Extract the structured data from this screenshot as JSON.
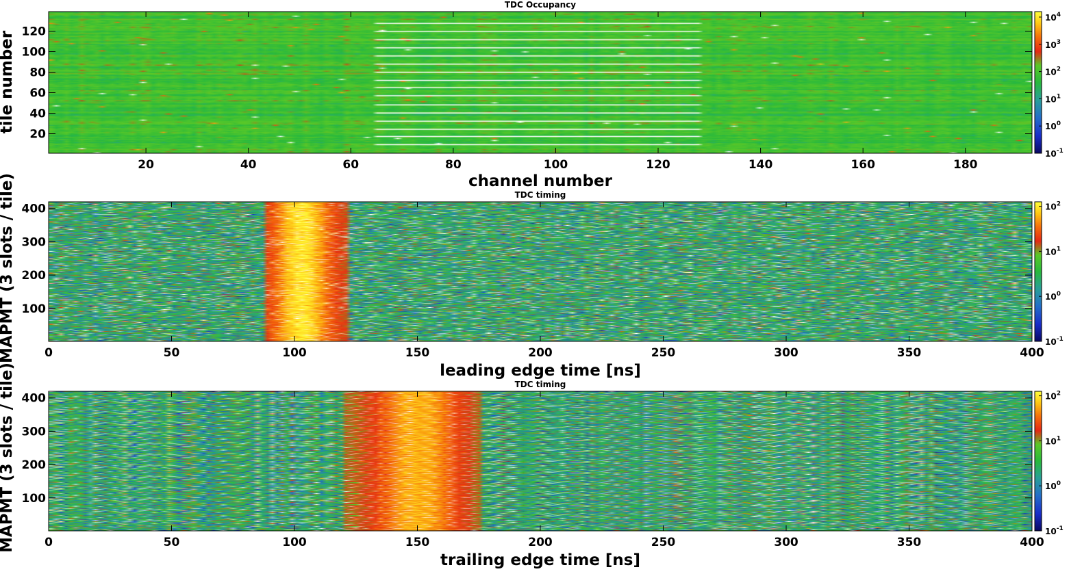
{
  "chart_data": [
    {
      "type": "heatmap",
      "title": "TDC Occupancy",
      "xlabel": "channel number",
      "ylabel": "tile number",
      "xlim": [
        1,
        193
      ],
      "ylim": [
        1,
        139
      ],
      "xticks": [
        20,
        40,
        60,
        80,
        100,
        120,
        140,
        160,
        180
      ],
      "yticks": [
        20,
        40,
        60,
        80,
        100,
        120
      ],
      "z_scale": "log",
      "colorbar_ticks": [
        {
          "base": "10",
          "exp": "4"
        },
        {
          "base": "10",
          "exp": "3"
        },
        {
          "base": "10",
          "exp": "2"
        },
        {
          "base": "10",
          "exp": "1"
        },
        {
          "base": "10",
          "exp": "0"
        },
        {
          "base": "10",
          "exp": "-1"
        }
      ],
      "zlim_exp": [
        -1,
        4.2
      ],
      "typical_log10_count": 1.9,
      "regions": [
        {
          "x_from": 1,
          "x_to": 64,
          "description": "uniform occupancy"
        },
        {
          "x_from": 65,
          "x_to": 128,
          "description": "uniform occupancy with periodic empty tile rows"
        },
        {
          "x_from": 129,
          "x_to": 193,
          "description": "uniform occupancy"
        }
      ],
      "empty_tiles_in_middle_region": [
        9,
        17,
        24,
        32,
        40,
        48,
        57,
        65,
        72,
        80,
        88,
        96,
        104,
        112,
        120,
        128
      ]
    },
    {
      "type": "heatmap",
      "title": "TDC timing",
      "xlabel": "leading edge time [ns]",
      "ylabel": "MAPMT (3 slots / tile)",
      "xlim": [
        0,
        400
      ],
      "ylim": [
        1,
        420
      ],
      "xticks": [
        0,
        50,
        100,
        150,
        200,
        250,
        300,
        350,
        400
      ],
      "yticks": [
        100,
        200,
        300,
        400
      ],
      "z_scale": "log",
      "colorbar_ticks": [
        {
          "base": "10",
          "exp": "2"
        },
        {
          "base": "10",
          "exp": "1"
        },
        {
          "base": "10",
          "exp": "0"
        },
        {
          "base": "10",
          "exp": "-1"
        }
      ],
      "zlim_exp": [
        -1,
        2.1
      ],
      "peak": {
        "center_ns": 103,
        "start_ns": 88,
        "end_ns": 122,
        "peak_count": 100
      },
      "background_log10_count": 0.4
    },
    {
      "type": "heatmap",
      "title": "TDC timing",
      "xlabel": "trailing edge time [ns]",
      "ylabel": "MAPMT (3 slots / tile)",
      "xlim": [
        0,
        400
      ],
      "ylim": [
        1,
        420
      ],
      "xticks": [
        0,
        50,
        100,
        150,
        200,
        250,
        300,
        350,
        400
      ],
      "yticks": [
        100,
        200,
        300,
        400
      ],
      "z_scale": "log",
      "colorbar_ticks": [
        {
          "base": "10",
          "exp": "2"
        },
        {
          "base": "10",
          "exp": "1"
        },
        {
          "base": "10",
          "exp": "0"
        },
        {
          "base": "10",
          "exp": "-1"
        }
      ],
      "zlim_exp": [
        -1,
        2.1
      ],
      "peak": {
        "center_ns": 150,
        "start_ns": 120,
        "end_ns": 175,
        "peak_count": 60
      },
      "background_log10_count": 0.4
    }
  ]
}
